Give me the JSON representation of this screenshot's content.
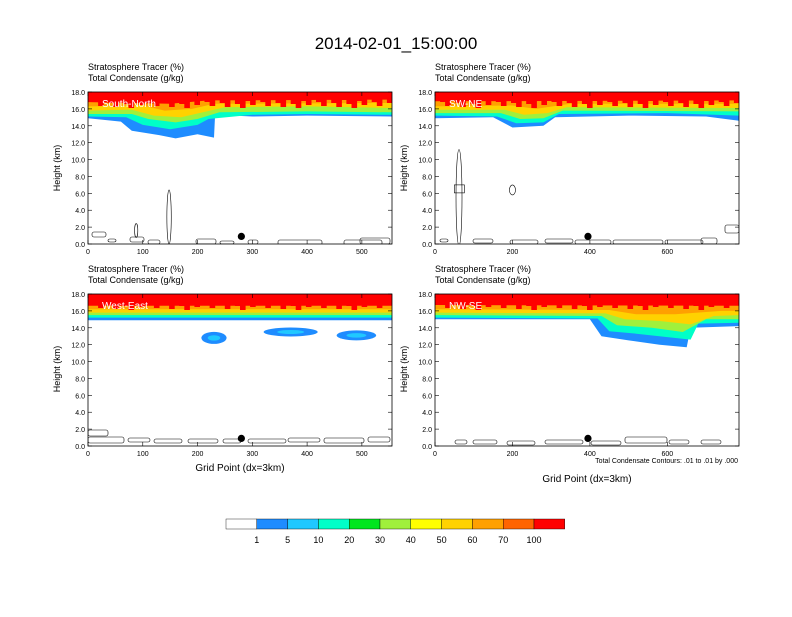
{
  "title": "2014-02-01_15:00:00",
  "contour_note": "Total Condensate Contours: .01 to .01 by .000",
  "colors": {
    "levels": [
      "#ffffff",
      "#1e8cff",
      "#20c8ff",
      "#00ffc8",
      "#00e61e",
      "#a0f03c",
      "#ffff00",
      "#ffd200",
      "#ffa000",
      "#ff6400",
      "#ff0000"
    ],
    "contour": "#000000",
    "marker": "#000000"
  },
  "colorbar": {
    "labels": [
      "1",
      "5",
      "10",
      "20",
      "30",
      "40",
      "50",
      "60",
      "70",
      "100"
    ]
  },
  "chart_data": [
    {
      "type": "heatmap",
      "panel_label": "South-North",
      "subtitle_line1": "Stratosphere Tracer   (%)",
      "subtitle_line2": "Total Condensate   (g/kg)",
      "ylabel": "Height (km)",
      "xlabel": "",
      "xlim": [
        0,
        555
      ],
      "ylim": [
        0,
        18
      ],
      "xticks": [
        "0",
        "100",
        "200",
        "300",
        "400",
        "500"
      ],
      "yticks": [
        "0.0",
        "2.0",
        "4.0",
        "6.0",
        "8.0",
        "10.0",
        "12.0",
        "14.0",
        "16.0",
        "18.0"
      ],
      "marker_x": 280,
      "bands": [
        {
          "level": 1,
          "profile": [
            [
              0,
              14.9
            ],
            [
              60,
              14.5
            ],
            [
              80,
              13.4
            ],
            [
              130,
              12.9
            ],
            [
              160,
              12.5
            ],
            [
              200,
              13.0
            ],
            [
              230,
              12.6
            ],
            [
              232,
              15.3
            ],
            [
              300,
              15.1
            ],
            [
              400,
              15.2
            ],
            [
              555,
              15.1
            ]
          ]
        },
        {
          "level": 3,
          "profile": [
            [
              0,
              15.1
            ],
            [
              70,
              15.0
            ],
            [
              100,
              14.1
            ],
            [
              150,
              13.6
            ],
            [
              200,
              14.1
            ],
            [
              220,
              14.8
            ],
            [
              300,
              15.3
            ],
            [
              400,
              15.4
            ],
            [
              555,
              15.3
            ]
          ]
        },
        {
          "level": 5,
          "profile": [
            [
              0,
              15.4
            ],
            [
              80,
              15.4
            ],
            [
              110,
              14.8
            ],
            [
              160,
              14.4
            ],
            [
              200,
              14.8
            ],
            [
              240,
              15.6
            ],
            [
              400,
              15.7
            ],
            [
              555,
              15.6
            ]
          ]
        },
        {
          "level": 7,
          "profile": [
            [
              0,
              15.8
            ],
            [
              80,
              15.9
            ],
            [
              120,
              15.2
            ],
            [
              170,
              15.0
            ],
            [
              210,
              15.6
            ],
            [
              250,
              16.2
            ],
            [
              400,
              16.3
            ],
            [
              555,
              16.1
            ]
          ]
        },
        {
          "level": 8,
          "profile": [
            [
              0,
              16.3
            ],
            [
              100,
              16.4
            ],
            [
              140,
              15.8
            ],
            [
              190,
              16.0
            ],
            [
              230,
              16.6
            ],
            [
              555,
              16.7
            ]
          ]
        },
        {
          "level": 10,
          "profile": [
            [
              0,
              16.8
            ],
            [
              150,
              16.6
            ],
            [
              220,
              17.0
            ],
            [
              555,
              17.1
            ]
          ]
        }
      ]
    },
    {
      "type": "heatmap",
      "panel_label": "SW-NE",
      "subtitle_line1": "Stratosphere Tracer   (%)",
      "subtitle_line2": "Total Condensate   (g/kg)",
      "ylabel": "Height (km)",
      "xlabel": "",
      "xlim": [
        0,
        785
      ],
      "ylim": [
        0,
        18
      ],
      "xticks": [
        "0",
        "200",
        "400",
        "600"
      ],
      "yticks": [
        "0.0",
        "2.0",
        "4.0",
        "6.0",
        "8.0",
        "10.0",
        "12.0",
        "14.0",
        "16.0",
        "18.0"
      ],
      "marker_x": 395,
      "bands": [
        {
          "level": 1,
          "profile": [
            [
              0,
              14.9
            ],
            [
              150,
              15.0
            ],
            [
              200,
              13.8
            ],
            [
              280,
              14.0
            ],
            [
              310,
              15.0
            ],
            [
              500,
              15.2
            ],
            [
              700,
              15.1
            ],
            [
              785,
              14.6
            ]
          ]
        },
        {
          "level": 3,
          "profile": [
            [
              0,
              15.2
            ],
            [
              160,
              15.1
            ],
            [
              210,
              14.3
            ],
            [
              280,
              14.4
            ],
            [
              320,
              15.4
            ],
            [
              600,
              15.5
            ],
            [
              785,
              15.2
            ]
          ]
        },
        {
          "level": 5,
          "profile": [
            [
              0,
              15.5
            ],
            [
              170,
              15.5
            ],
            [
              220,
              14.8
            ],
            [
              280,
              14.9
            ],
            [
              330,
              15.8
            ],
            [
              785,
              15.7
            ]
          ]
        },
        {
          "level": 7,
          "profile": [
            [
              0,
              15.9
            ],
            [
              180,
              15.9
            ],
            [
              230,
              15.3
            ],
            [
              290,
              15.5
            ],
            [
              340,
              16.2
            ],
            [
              785,
              16.1
            ]
          ]
        },
        {
          "level": 8,
          "profile": [
            [
              0,
              16.3
            ],
            [
              200,
              16.4
            ],
            [
              260,
              16.0
            ],
            [
              350,
              16.6
            ],
            [
              785,
              16.6
            ]
          ]
        },
        {
          "level": 10,
          "profile": [
            [
              0,
              16.9
            ],
            [
              785,
              17.0
            ]
          ]
        }
      ]
    },
    {
      "type": "heatmap",
      "panel_label": "West-East",
      "subtitle_line1": "Stratosphere Tracer   (%)",
      "subtitle_line2": "Total Condensate   (g/kg)",
      "ylabel": "Height (km)",
      "xlabel": "Grid Point (dx=3km)",
      "xlim": [
        0,
        555
      ],
      "ylim": [
        0,
        18
      ],
      "xticks": [
        "0",
        "100",
        "200",
        "300",
        "400",
        "500"
      ],
      "yticks": [
        "0.0",
        "2.0",
        "4.0",
        "6.0",
        "8.0",
        "10.0",
        "12.0",
        "14.0",
        "16.0",
        "18.0"
      ],
      "marker_x": 280,
      "bands": [
        {
          "level": 1,
          "profile": [
            [
              0,
              14.9
            ],
            [
              555,
              14.9
            ]
          ]
        },
        {
          "level": 3,
          "profile": [
            [
              0,
              15.2
            ],
            [
              555,
              15.2
            ]
          ]
        },
        {
          "level": 5,
          "profile": [
            [
              0,
              15.5
            ],
            [
              555,
              15.5
            ]
          ]
        },
        {
          "level": 7,
          "profile": [
            [
              0,
              15.8
            ],
            [
              555,
              15.8
            ]
          ]
        },
        {
          "level": 8,
          "profile": [
            [
              0,
              16.2
            ],
            [
              555,
              16.2
            ]
          ]
        },
        {
          "level": 10,
          "profile": [
            [
              0,
              16.6
            ],
            [
              555,
              16.6
            ]
          ]
        }
      ]
    },
    {
      "type": "heatmap",
      "panel_label": "NW-SE",
      "subtitle_line1": "Stratosphere Tracer   (%)",
      "subtitle_line2": "Total Condensate   (g/kg)",
      "ylabel": "Height (km)",
      "xlabel": "Grid Point (dx=3km)",
      "xlim": [
        0,
        785
      ],
      "ylim": [
        0,
        18
      ],
      "xticks": [
        "0",
        "200",
        "400",
        "600"
      ],
      "yticks": [
        "0.0",
        "2.0",
        "4.0",
        "6.0",
        "8.0",
        "10.0",
        "12.0",
        "14.0",
        "16.0",
        "18.0"
      ],
      "marker_x": 395,
      "bands": [
        {
          "level": 1,
          "profile": [
            [
              0,
              15.0
            ],
            [
              400,
              15.0
            ],
            [
              430,
              13.0
            ],
            [
              500,
              12.5
            ],
            [
              580,
              12.0
            ],
            [
              650,
              11.7
            ],
            [
              660,
              14.0
            ],
            [
              785,
              14.2
            ]
          ]
        },
        {
          "level": 3,
          "profile": [
            [
              0,
              15.2
            ],
            [
              420,
              15.1
            ],
            [
              450,
              13.6
            ],
            [
              520,
              13.3
            ],
            [
              600,
              12.9
            ],
            [
              660,
              12.6
            ],
            [
              680,
              14.5
            ],
            [
              785,
              14.6
            ]
          ]
        },
        {
          "level": 5,
          "profile": [
            [
              0,
              15.5
            ],
            [
              430,
              15.4
            ],
            [
              470,
              14.3
            ],
            [
              560,
              14.0
            ],
            [
              640,
              13.5
            ],
            [
              700,
              15.0
            ],
            [
              785,
              15.0
            ]
          ]
        },
        {
          "level": 7,
          "profile": [
            [
              0,
              15.8
            ],
            [
              440,
              15.7
            ],
            [
              490,
              15.0
            ],
            [
              580,
              14.8
            ],
            [
              660,
              14.4
            ],
            [
              720,
              15.4
            ],
            [
              785,
              15.5
            ]
          ]
        },
        {
          "level": 8,
          "profile": [
            [
              0,
              16.2
            ],
            [
              450,
              16.1
            ],
            [
              520,
              15.6
            ],
            [
              620,
              15.6
            ],
            [
              740,
              16.0
            ],
            [
              785,
              16.0
            ]
          ]
        },
        {
          "level": 10,
          "profile": [
            [
              0,
              16.7
            ],
            [
              785,
              16.6
            ]
          ]
        }
      ]
    }
  ]
}
